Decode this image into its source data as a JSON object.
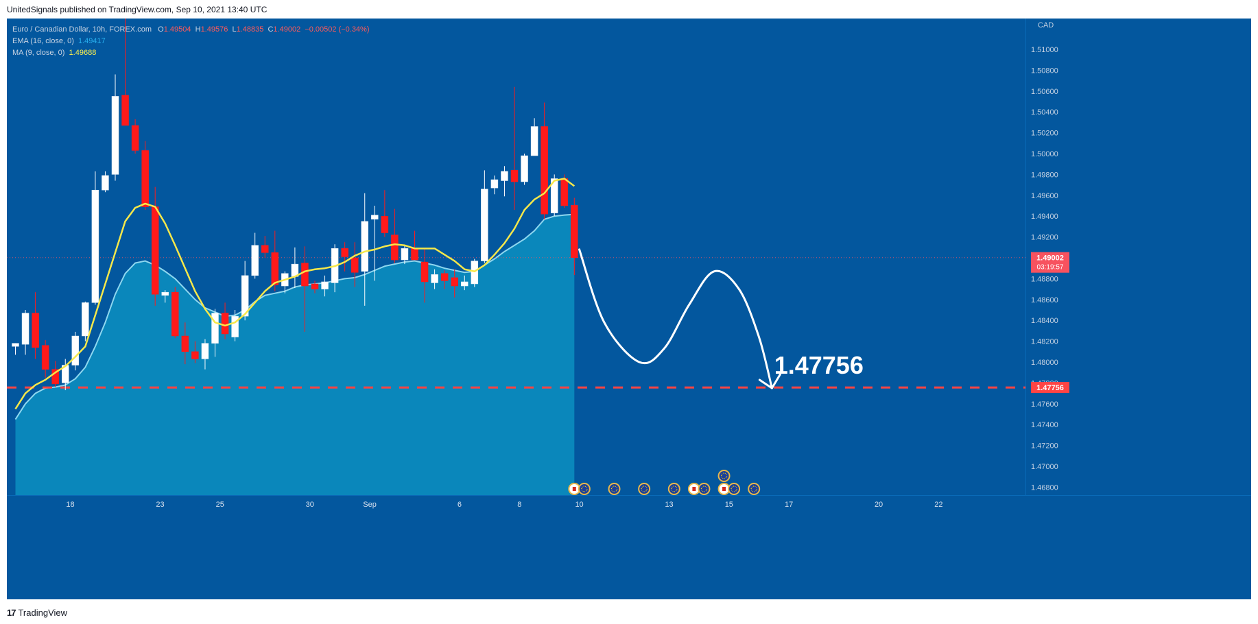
{
  "header": {
    "publisher_line": "UnitedSignals published on TradingView.com, Sep 10, 2021 13:40 UTC"
  },
  "legend": {
    "symbol": "Euro / Canadian Dollar, 10h, FOREX.com",
    "o_label": "O",
    "o_value": "1.49504",
    "h_label": "H",
    "h_value": "1.49576",
    "l_label": "L",
    "l_value": "1.48835",
    "c_label": "C",
    "c_value": "1.49002",
    "change": "−0.00502 (−0.34%)",
    "ema_label": "EMA (16, close, 0)",
    "ema_value": "1.49417",
    "ma_label": "MA (9, close, 0)",
    "ma_value": "1.49688"
  },
  "footer": {
    "brand": "TradingView",
    "brand_mark": "17"
  },
  "chart_data": {
    "type": "candlestick",
    "title": "Euro / Canadian Dollar, 10h, FOREX.com",
    "currency": "CAD",
    "ylim": [
      1.465,
      1.515
    ],
    "y_ticks": [
      "1.51000",
      "1.50800",
      "1.50600",
      "1.50400",
      "1.50200",
      "1.50000",
      "1.49800",
      "1.49600",
      "1.49400",
      "1.49200",
      "1.49000",
      "1.48800",
      "1.48600",
      "1.48400",
      "1.48200",
      "1.48000",
      "1.47800",
      "1.47600",
      "1.47400",
      "1.47200",
      "1.47000",
      "1.46800"
    ],
    "y_tick_values": [
      1.51,
      1.508,
      1.506,
      1.504,
      1.502,
      1.5,
      1.498,
      1.496,
      1.494,
      1.492,
      1.49,
      1.488,
      1.486,
      1.484,
      1.482,
      1.48,
      1.478,
      1.476,
      1.474,
      1.472,
      1.47,
      1.468
    ],
    "x_labels": [
      {
        "label": "18",
        "index": 5.5
      },
      {
        "label": "23",
        "index": 14.5
      },
      {
        "label": "25",
        "index": 20.5
      },
      {
        "label": "30",
        "index": 29.5
      },
      {
        "label": "Sep",
        "index": 35.5
      },
      {
        "label": "6",
        "index": 44.5
      },
      {
        "label": "8",
        "index": 50.5
      },
      {
        "label": "10",
        "index": 56.5
      },
      {
        "label": "13",
        "index": 65.5
      },
      {
        "label": "15",
        "index": 71.5
      },
      {
        "label": "17",
        "index": 77.5
      },
      {
        "label": "20",
        "index": 86.5
      },
      {
        "label": "22",
        "index": 92.5
      }
    ],
    "candles": [
      {
        "o": 1.4815,
        "h": 1.4818,
        "l": 1.4807,
        "c": 1.4818
      },
      {
        "o": 1.4817,
        "h": 1.485,
        "l": 1.4807,
        "c": 1.4847
      },
      {
        "o": 1.4847,
        "h": 1.4867,
        "l": 1.4803,
        "c": 1.4814
      },
      {
        "o": 1.4816,
        "h": 1.4821,
        "l": 1.4785,
        "c": 1.4793
      },
      {
        "o": 1.4793,
        "h": 1.4801,
        "l": 1.4776,
        "c": 1.4779
      },
      {
        "o": 1.478,
        "h": 1.4803,
        "l": 1.4773,
        "c": 1.4797
      },
      {
        "o": 1.4797,
        "h": 1.4829,
        "l": 1.4792,
        "c": 1.4825
      },
      {
        "o": 1.4825,
        "h": 1.4858,
        "l": 1.482,
        "c": 1.4857
      },
      {
        "o": 1.4857,
        "h": 1.4983,
        "l": 1.4855,
        "c": 1.4965
      },
      {
        "o": 1.4965,
        "h": 1.4983,
        "l": 1.4963,
        "c": 1.4979
      },
      {
        "o": 1.498,
        "h": 1.5076,
        "l": 1.4974,
        "c": 1.5055
      },
      {
        "o": 1.5056,
        "h": 1.5133,
        "l": 1.503,
        "c": 1.5027
      },
      {
        "o": 1.5027,
        "h": 1.5033,
        "l": 1.5,
        "c": 1.5003
      },
      {
        "o": 1.5003,
        "h": 1.5012,
        "l": 1.4946,
        "c": 1.4949
      },
      {
        "o": 1.4949,
        "h": 1.4968,
        "l": 1.4854,
        "c": 1.4865
      },
      {
        "o": 1.4864,
        "h": 1.4869,
        "l": 1.4857,
        "c": 1.4867
      },
      {
        "o": 1.4867,
        "h": 1.4872,
        "l": 1.4823,
        "c": 1.4825
      },
      {
        "o": 1.4825,
        "h": 1.4838,
        "l": 1.4798,
        "c": 1.481
      },
      {
        "o": 1.481,
        "h": 1.482,
        "l": 1.4799,
        "c": 1.4803
      },
      {
        "o": 1.4803,
        "h": 1.4822,
        "l": 1.4793,
        "c": 1.4818
      },
      {
        "o": 1.4818,
        "h": 1.4851,
        "l": 1.4805,
        "c": 1.4847
      },
      {
        "o": 1.4847,
        "h": 1.4857,
        "l": 1.4822,
        "c": 1.4827
      },
      {
        "o": 1.4824,
        "h": 1.485,
        "l": 1.482,
        "c": 1.4844
      },
      {
        "o": 1.4844,
        "h": 1.4897,
        "l": 1.484,
        "c": 1.4883
      },
      {
        "o": 1.4883,
        "h": 1.4924,
        "l": 1.488,
        "c": 1.4912
      },
      {
        "o": 1.4912,
        "h": 1.4921,
        "l": 1.49,
        "c": 1.4905
      },
      {
        "o": 1.4905,
        "h": 1.4926,
        "l": 1.4868,
        "c": 1.4874
      },
      {
        "o": 1.4873,
        "h": 1.4887,
        "l": 1.4866,
        "c": 1.4885
      },
      {
        "o": 1.4882,
        "h": 1.491,
        "l": 1.4871,
        "c": 1.4894
      },
      {
        "o": 1.4895,
        "h": 1.4911,
        "l": 1.4829,
        "c": 1.4873
      },
      {
        "o": 1.4875,
        "h": 1.4878,
        "l": 1.4866,
        "c": 1.487
      },
      {
        "o": 1.487,
        "h": 1.4883,
        "l": 1.4863,
        "c": 1.4877
      },
      {
        "o": 1.4876,
        "h": 1.4913,
        "l": 1.4867,
        "c": 1.4909
      },
      {
        "o": 1.4909,
        "h": 1.4915,
        "l": 1.4887,
        "c": 1.4901
      },
      {
        "o": 1.49,
        "h": 1.4915,
        "l": 1.4872,
        "c": 1.4886
      },
      {
        "o": 1.4887,
        "h": 1.4962,
        "l": 1.4854,
        "c": 1.4935
      },
      {
        "o": 1.4937,
        "h": 1.495,
        "l": 1.4878,
        "c": 1.4941
      },
      {
        "o": 1.494,
        "h": 1.4965,
        "l": 1.492,
        "c": 1.4924
      },
      {
        "o": 1.4922,
        "h": 1.4947,
        "l": 1.4895,
        "c": 1.4898
      },
      {
        "o": 1.4898,
        "h": 1.4912,
        "l": 1.4894,
        "c": 1.4909
      },
      {
        "o": 1.4909,
        "h": 1.4926,
        "l": 1.4898,
        "c": 1.4898
      },
      {
        "o": 1.4896,
        "h": 1.4909,
        "l": 1.4857,
        "c": 1.4877
      },
      {
        "o": 1.4876,
        "h": 1.4889,
        "l": 1.487,
        "c": 1.4884
      },
      {
        "o": 1.4885,
        "h": 1.4888,
        "l": 1.487,
        "c": 1.4878
      },
      {
        "o": 1.4881,
        "h": 1.4889,
        "l": 1.4862,
        "c": 1.4873
      },
      {
        "o": 1.4873,
        "h": 1.4883,
        "l": 1.4869,
        "c": 1.4877
      },
      {
        "o": 1.4875,
        "h": 1.4899,
        "l": 1.4872,
        "c": 1.4897
      },
      {
        "o": 1.4897,
        "h": 1.4984,
        "l": 1.4895,
        "c": 1.4966
      },
      {
        "o": 1.4967,
        "h": 1.4979,
        "l": 1.4961,
        "c": 1.4975
      },
      {
        "o": 1.4974,
        "h": 1.4988,
        "l": 1.4959,
        "c": 1.4983
      },
      {
        "o": 1.4984,
        "h": 1.5064,
        "l": 1.4946,
        "c": 1.4973
      },
      {
        "o": 1.4973,
        "h": 1.5,
        "l": 1.497,
        "c": 1.4998
      },
      {
        "o": 1.4998,
        "h": 1.5034,
        "l": 1.4998,
        "c": 1.5026
      },
      {
        "o": 1.5026,
        "h": 1.5049,
        "l": 1.4937,
        "c": 1.4942
      },
      {
        "o": 1.4943,
        "h": 1.498,
        "l": 1.494,
        "c": 1.4976
      },
      {
        "o": 1.4976,
        "h": 1.498,
        "l": 1.4948,
        "c": 1.495
      },
      {
        "o": 1.49504,
        "h": 1.49576,
        "l": 1.48835,
        "c": 1.49002
      }
    ],
    "ema": [
      1.4745,
      1.476,
      1.477,
      1.4775,
      1.4776,
      1.4778,
      1.4784,
      1.4795,
      1.4815,
      1.4838,
      1.4865,
      1.4885,
      1.4895,
      1.4897,
      1.4893,
      1.4887,
      1.488,
      1.487,
      1.486,
      1.4852,
      1.4848,
      1.4844,
      1.4845,
      1.485,
      1.4858,
      1.4864,
      1.4866,
      1.4868,
      1.4872,
      1.4874,
      1.4875,
      1.4876,
      1.4878,
      1.488,
      1.4881,
      1.4884,
      1.4888,
      1.4892,
      1.4894,
      1.4896,
      1.4897,
      1.4895,
      1.4893,
      1.489,
      1.4888,
      1.4886,
      1.4887,
      1.4893,
      1.4899,
      1.4906,
      1.4912,
      1.4918,
      1.4926,
      1.4937,
      1.494,
      1.4941,
      1.49417
    ],
    "ma": [
      1.4755,
      1.477,
      1.4778,
      1.4783,
      1.479,
      1.4796,
      1.4805,
      1.4815,
      1.4845,
      1.4875,
      1.4905,
      1.4935,
      1.4948,
      1.4952,
      1.4949,
      1.4933,
      1.4912,
      1.489,
      1.4868,
      1.4851,
      1.4838,
      1.4835,
      1.4838,
      1.4846,
      1.4857,
      1.4868,
      1.4876,
      1.4879,
      1.4882,
      1.4887,
      1.4889,
      1.489,
      1.4892,
      1.4896,
      1.4902,
      1.4906,
      1.4908,
      1.4911,
      1.4913,
      1.4912,
      1.4909,
      1.4909,
      1.4909,
      1.4903,
      1.4897,
      1.4889,
      1.4887,
      1.4893,
      1.4903,
      1.4914,
      1.4928,
      1.4946,
      1.4956,
      1.4962,
      1.4974,
      1.4976,
      1.49688
    ],
    "last_price": {
      "value": 1.49002,
      "label": "1.49002",
      "countdown": "03:19:57"
    },
    "target": {
      "value": 1.47756,
      "label": "1.47756",
      "big_label": "1.47756"
    },
    "forecast_path": [
      {
        "i": 56.5,
        "p": 1.4908
      },
      {
        "i": 59.0,
        "p": 1.4838
      },
      {
        "i": 62.5,
        "p": 1.48
      },
      {
        "i": 65.0,
        "p": 1.4813
      },
      {
        "i": 67.5,
        "p": 1.4855
      },
      {
        "i": 70.0,
        "p": 1.4887
      },
      {
        "i": 72.5,
        "p": 1.487
      },
      {
        "i": 74.5,
        "p": 1.4824
      },
      {
        "i": 75.8,
        "p": 1.4775
      }
    ],
    "events": [
      {
        "index": 56.0,
        "type": "cad",
        "row": 0
      },
      {
        "index": 57.0,
        "type": "eur",
        "row": 0
      },
      {
        "index": 60.0,
        "type": "eur",
        "row": 0
      },
      {
        "index": 63.0,
        "type": "eur",
        "row": 0
      },
      {
        "index": 66.0,
        "type": "eur",
        "row": 0
      },
      {
        "index": 68.0,
        "type": "cad",
        "row": 0
      },
      {
        "index": 69.0,
        "type": "eur",
        "row": 0
      },
      {
        "index": 71.0,
        "type": "cad",
        "row": 0
      },
      {
        "index": 72.0,
        "type": "eur",
        "row": 0
      },
      {
        "index": 74.0,
        "type": "eur",
        "row": 0
      },
      {
        "index": 71.0,
        "type": "eur",
        "row": 1
      }
    ],
    "colors": {
      "background": "#03579e",
      "up_candle": "#ffffff",
      "down_candle": "#ff1a1a",
      "ema_area": "#0a87bb",
      "ema_line": "#8ed7ef",
      "ma_line": "#f6e84a",
      "target_line": "#ff4444",
      "last_price_badge": "#f7525f"
    },
    "grid": false
  }
}
